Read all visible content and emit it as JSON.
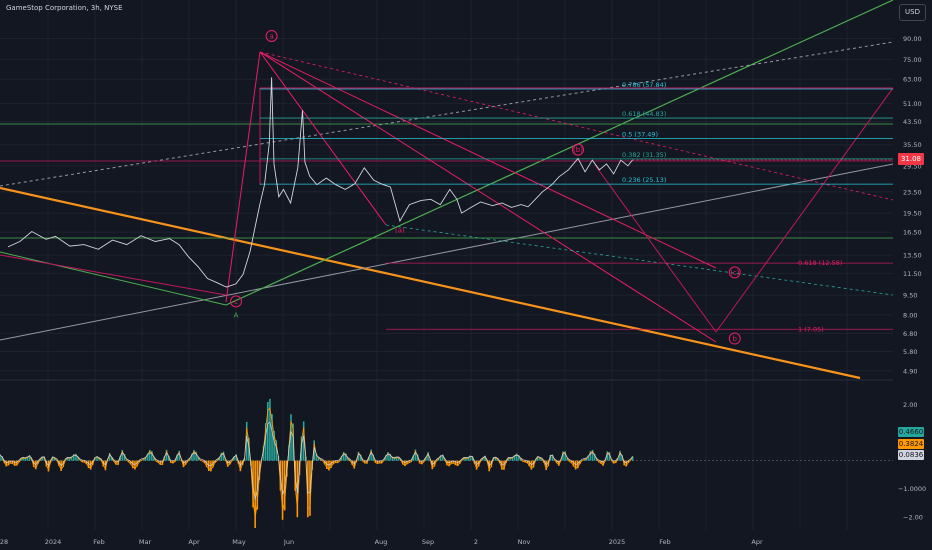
{
  "header": {
    "symbol_title": "GameStop Corporation, 3h, NYSE",
    "currency_button": "USD"
  },
  "colors": {
    "background": "#131722",
    "price_line": "#d1d4dc",
    "trend_orange": "#f7931a",
    "fib_teal": "#26a69a",
    "fib_cyan": "#22ab94",
    "wave_pink": "#e91e63",
    "wave_magenta": "#c2185b",
    "green_channel": "#4caf50",
    "grey_line": "#9598a1",
    "last_price_bg": "#f23645",
    "osc_teal": "#26a69a",
    "osc_orange": "#ff9800",
    "osc_white": "#d1d4dc"
  },
  "chart_data": [
    {
      "type": "line",
      "scale": "log",
      "last_price": {
        "label": "31.08",
        "value": 31.08
      },
      "ylim": [
        4.6,
        104
      ],
      "y_ticks": [
        {
          "label": "90.00",
          "value": 90
        },
        {
          "label": "75.00",
          "value": 75
        },
        {
          "label": "63.00",
          "value": 63
        },
        {
          "label": "51.00",
          "value": 51
        },
        {
          "label": "43.50",
          "value": 43.5
        },
        {
          "label": "35.50",
          "value": 35.5
        },
        {
          "label": "29.50",
          "value": 29.5
        },
        {
          "label": "23.50",
          "value": 23.5
        },
        {
          "label": "19.50",
          "value": 19.5
        },
        {
          "label": "16.50",
          "value": 16.5
        },
        {
          "label": "13.50",
          "value": 13.5
        },
        {
          "label": "11.50",
          "value": 11.5
        },
        {
          "label": "9.50",
          "value": 9.5
        },
        {
          "label": "8.00",
          "value": 8.0
        },
        {
          "label": "6.80",
          "value": 6.8
        },
        {
          "label": "5.80",
          "value": 5.8
        },
        {
          "label": "4.90",
          "value": 4.9
        }
      ],
      "x_ticks": [
        "28",
        "2024",
        "Feb",
        "Mar",
        "Apr",
        "May",
        "Jun",
        "Aug",
        "Sep",
        "2",
        "Nov",
        "2025",
        "Feb",
        "Apr"
      ],
      "price_series": [
        [
          0,
          14.5
        ],
        [
          0.25,
          15.2
        ],
        [
          0.5,
          16.6
        ],
        [
          0.8,
          15.5
        ],
        [
          1.0,
          15.9
        ],
        [
          1.3,
          14.6
        ],
        [
          1.6,
          14.8
        ],
        [
          1.9,
          14.2
        ],
        [
          2.2,
          15.4
        ],
        [
          2.5,
          14.8
        ],
        [
          2.8,
          16.0
        ],
        [
          3.1,
          15.2
        ],
        [
          3.4,
          15.6
        ],
        [
          3.6,
          14.8
        ],
        [
          3.8,
          13.3
        ],
        [
          4.0,
          12.2
        ],
        [
          4.2,
          11.0
        ],
        [
          4.4,
          10.6
        ],
        [
          4.6,
          10.2
        ],
        [
          4.8,
          10.5
        ],
        [
          4.95,
          11.4
        ],
        [
          5.1,
          14.0
        ],
        [
          5.2,
          17.2
        ],
        [
          5.3,
          21.0
        ],
        [
          5.4,
          25.0
        ],
        [
          5.5,
          36.0
        ],
        [
          5.55,
          64.0
        ],
        [
          5.6,
          30.0
        ],
        [
          5.7,
          22.5
        ],
        [
          5.8,
          24.0
        ],
        [
          5.95,
          21.3
        ],
        [
          6.1,
          29.0
        ],
        [
          6.2,
          48.0
        ],
        [
          6.25,
          30.5
        ],
        [
          6.35,
          27.0
        ],
        [
          6.5,
          25.0
        ],
        [
          6.7,
          26.5
        ],
        [
          6.9,
          25.0
        ],
        [
          7.1,
          24.0
        ],
        [
          7.3,
          25.2
        ],
        [
          7.5,
          29.0
        ],
        [
          7.7,
          26.0
        ],
        [
          7.9,
          25.0
        ],
        [
          8.05,
          24.5
        ],
        [
          8.25,
          18.2
        ],
        [
          8.45,
          21.0
        ],
        [
          8.7,
          21.8
        ],
        [
          8.9,
          22.0
        ],
        [
          9.1,
          21.0
        ],
        [
          9.3,
          24.0
        ],
        [
          9.45,
          22.0
        ],
        [
          9.55,
          19.5
        ],
        [
          9.75,
          20.5
        ],
        [
          9.95,
          21.5
        ],
        [
          10.2,
          20.8
        ],
        [
          10.4,
          21.3
        ],
        [
          10.6,
          20.5
        ],
        [
          10.8,
          21.0
        ],
        [
          10.95,
          20.6
        ],
        [
          11.1,
          22.0
        ],
        [
          11.25,
          23.5
        ],
        [
          11.45,
          25.0
        ],
        [
          11.6,
          26.8
        ],
        [
          11.8,
          28.5
        ],
        [
          12.0,
          31.5
        ],
        [
          12.15,
          28.0
        ],
        [
          12.3,
          31.0
        ],
        [
          12.45,
          28.5
        ],
        [
          12.6,
          30.0
        ],
        [
          12.75,
          27.5
        ],
        [
          12.9,
          31.0
        ],
        [
          13.05,
          29.5
        ],
        [
          13.15,
          31.08
        ]
      ],
      "fib_levels": [
        {
          "label": "0.786 (57.84)",
          "value": 57.84
        },
        {
          "label": "0.618 (44.83)",
          "value": 44.83
        },
        {
          "label": "0.5 (37.49)",
          "value": 37.49
        },
        {
          "label": "0.382 (31.35)",
          "value": 31.35
        },
        {
          "label": "0.236 (25.13)",
          "value": 25.13
        }
      ],
      "projection_levels": [
        {
          "label": "0.618 (12.58)",
          "value": 12.58
        },
        {
          "label": "1 (7.05)",
          "value": 7.05
        }
      ],
      "wave_labels": [
        {
          "label": "a",
          "x": 5.55,
          "y": 92.0
        },
        {
          "label": "c",
          "x": 4.8,
          "y": 9.0
        },
        {
          "label": "A",
          "x": 4.8,
          "y": 8.0
        },
        {
          "label": "(a)",
          "x": 8.25,
          "y": 16.8
        },
        {
          "label": "(b)",
          "x": 12.0,
          "y": 34.0
        },
        {
          "label": "(c)",
          "x": 15.3,
          "y": 11.6
        },
        {
          "label": "b",
          "x": 15.3,
          "y": 6.5
        }
      ]
    },
    {
      "type": "line",
      "ylim": [
        -2.4,
        2.8
      ],
      "y_ticks": [
        {
          "label": "2.00",
          "value": 2
        },
        {
          "label": "1.0000",
          "value": 1
        },
        {
          "label": "−1.0000",
          "value": -1
        },
        {
          "label": "−2.00",
          "value": -2
        }
      ],
      "tags": [
        {
          "label": "0.4660",
          "value": 0.466
        },
        {
          "label": "0.3824",
          "value": 0.3824
        },
        {
          "label": "0.0836",
          "value": 0.0836
        }
      ]
    }
  ]
}
